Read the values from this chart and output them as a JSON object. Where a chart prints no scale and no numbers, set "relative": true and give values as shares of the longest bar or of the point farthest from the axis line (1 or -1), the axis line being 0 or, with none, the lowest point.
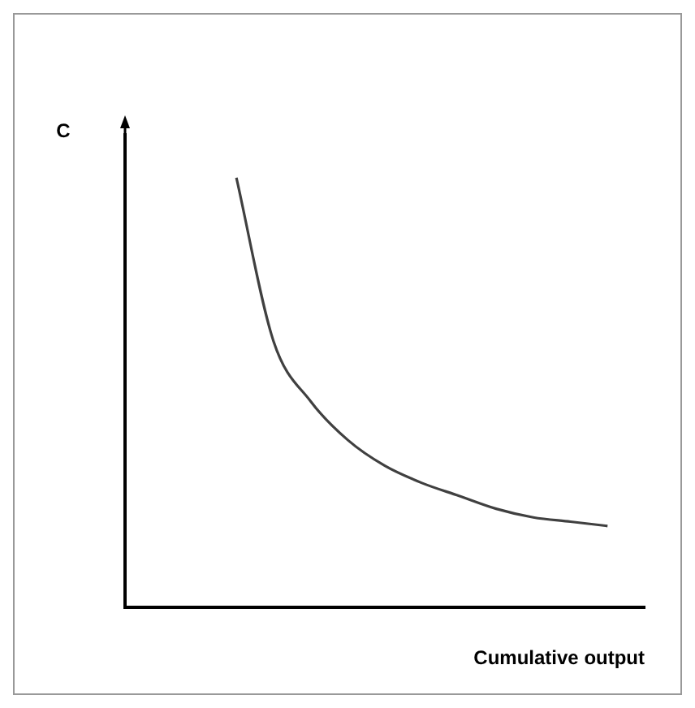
{
  "chart_data": {
    "type": "line",
    "ylabel": "C",
    "xlabel": "Cumulative output",
    "relative": true,
    "grid": false,
    "legend": false,
    "marker": "none",
    "line_style": "solid",
    "categories": [
      null,
      null,
      null,
      null,
      null,
      null,
      null,
      null,
      null,
      null,
      null,
      null,
      null,
      null,
      null
    ],
    "series": [
      {
        "color": "#404040",
        "values": [
          null,
          null,
          null,
          1.0,
          0.62,
          0.48,
          0.39,
          0.33,
          0.29,
          0.26,
          0.23,
          0.21,
          0.2,
          0.19,
          null
        ]
      }
    ]
  }
}
